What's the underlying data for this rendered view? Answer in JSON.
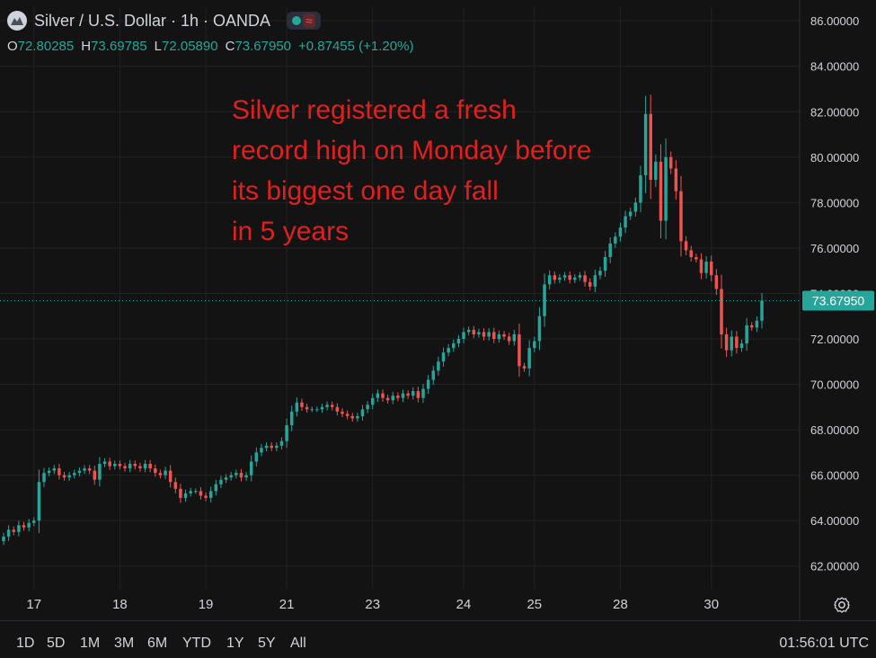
{
  "header": {
    "title": "Silver / U.S. Dollar · 1h · OANDA",
    "icon": "silver-logo-icon",
    "market_open_color": "#26a69a",
    "wave_icon": "≈"
  },
  "ohlc": {
    "o_label": "O",
    "o": "72.80285",
    "h_label": "H",
    "h": "73.69785",
    "l_label": "L",
    "l": "72.05890",
    "c_label": "C",
    "c": "73.67950",
    "change": "+0.87455 (+1.20%)"
  },
  "annotation": {
    "lines": [
      "Silver registered a fresh",
      "record high on Monday before",
      "its biggest one day fall",
      "in 5 years"
    ],
    "color": "#e0201e"
  },
  "toolbar": {
    "ranges": [
      "1D",
      "5D",
      "1M",
      "3M",
      "6M",
      "YTD",
      "1Y",
      "5Y",
      "All"
    ],
    "time": "01:56:01 UTC",
    "settings_icon": "gear-icon"
  },
  "colors": {
    "up": "#26a69a",
    "down": "#ef5350",
    "background": "#131313",
    "grid": "#222222",
    "price_label_bg": "#26a69a"
  },
  "chart_data": {
    "type": "candlestick",
    "title": "Silver / U.S. Dollar · 1h · OANDA",
    "ylim": [
      61.0,
      86.6
    ],
    "y_ticks": [
      "62.00000",
      "64.00000",
      "66.00000",
      "68.00000",
      "70.00000",
      "72.00000",
      "74.00000",
      "76.00000",
      "78.00000",
      "80.00000",
      "82.00000",
      "84.00000",
      "86.00000"
    ],
    "x_ticks": [
      "17",
      "18",
      "19",
      "21",
      "23",
      "24",
      "25",
      "28",
      "30"
    ],
    "x_tick_positions_index": [
      6,
      23,
      40,
      56,
      73,
      91,
      105,
      122,
      140
    ],
    "last_price": "73.67950",
    "grid": true,
    "series": [
      {
        "name": "OHLC",
        "closes": [
          63.3,
          63.6,
          63.5,
          63.8,
          63.7,
          63.9,
          64.0,
          65.7,
          66.1,
          66.2,
          66.3,
          66.0,
          65.9,
          66.0,
          66.1,
          66.2,
          66.3,
          66.2,
          65.8,
          66.5,
          66.6,
          66.4,
          66.5,
          66.4,
          66.3,
          66.5,
          66.4,
          66.3,
          66.5,
          66.3,
          66.1,
          66.0,
          66.2,
          65.7,
          65.4,
          65.0,
          65.2,
          65.3,
          65.3,
          65.1,
          65.0,
          65.3,
          65.6,
          65.8,
          65.9,
          66.0,
          66.1,
          65.9,
          66.0,
          66.6,
          67.0,
          67.2,
          67.3,
          67.2,
          67.3,
          67.5,
          68.2,
          68.8,
          69.2,
          69.0,
          68.9,
          68.9,
          68.9,
          69.0,
          69.1,
          69.0,
          68.8,
          68.7,
          68.6,
          68.5,
          68.6,
          68.9,
          69.1,
          69.4,
          69.6,
          69.4,
          69.3,
          69.5,
          69.4,
          69.6,
          69.5,
          69.7,
          69.4,
          69.8,
          70.2,
          70.6,
          71.0,
          71.4,
          71.6,
          71.8,
          72.0,
          72.3,
          72.4,
          72.2,
          72.3,
          72.1,
          72.3,
          72.0,
          72.2,
          72.1,
          71.9,
          72.2,
          70.8,
          70.7,
          71.6,
          71.9,
          73.0,
          74.4,
          74.8,
          74.6,
          74.7,
          74.8,
          74.6,
          74.7,
          74.8,
          74.5,
          74.3,
          74.8,
          75.0,
          75.6,
          76.2,
          76.5,
          76.9,
          77.4,
          77.6,
          78.0,
          79.2,
          81.9,
          79.0,
          79.8,
          77.2,
          80.0,
          79.5,
          78.5,
          76.3,
          75.9,
          75.6,
          75.5,
          74.9,
          75.4,
          74.8,
          74.2,
          72.2,
          71.5,
          72.1,
          71.6,
          71.8,
          72.6,
          72.5,
          72.8,
          73.68
        ]
      }
    ]
  }
}
